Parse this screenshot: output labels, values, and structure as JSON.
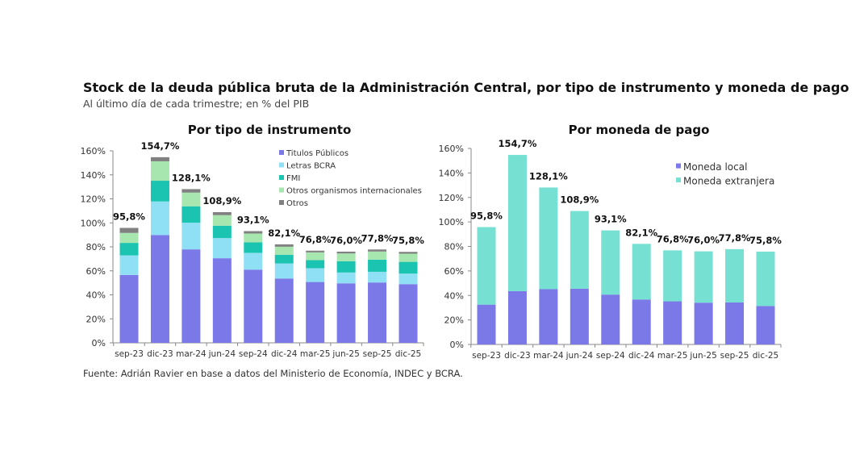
{
  "title": "Stock de la deuda pública bruta de la Administración Central, por tipo de instrumento y moneda de pago",
  "subtitle": "Al último día de cada trimestre; en % del PIB",
  "source": "Fuente: Adrián Ravier en base a datos del Ministerio de Economía, INDEC y BCRA.",
  "chart_data": [
    {
      "type": "bar",
      "stacked": true,
      "title": "Por tipo de instrumento",
      "categories": [
        "sep-23",
        "dic-23",
        "mar-24",
        "jun-24",
        "sep-24",
        "dic-24",
        "mar-25",
        "jun-25",
        "sep-25",
        "dic-25"
      ],
      "totals": [
        "95,8%",
        "154,7%",
        "128,1%",
        "108,9%",
        "93,1%",
        "82,1%",
        "76,8%",
        "76,0%",
        "77,8%",
        "75,8%"
      ],
      "yticks": [
        "0%",
        "20%",
        "40%",
        "60%",
        "80%",
        "100%",
        "120%",
        "140%",
        "160%"
      ],
      "ylim": [
        0,
        160
      ],
      "grid": false,
      "legend": "top-right",
      "series": [
        {
          "name": "Titulos Públicos",
          "color": "#7b78e8",
          "values": [
            56.6,
            89.8,
            77.9,
            70.5,
            61.0,
            53.6,
            50.7,
            49.6,
            50.3,
            48.9
          ]
        },
        {
          "name": "Letras BCRA",
          "color": "#8fe0f5",
          "values": [
            16.3,
            28.0,
            22.2,
            16.8,
            14.0,
            12.6,
            11.5,
            9.0,
            8.9,
            8.8
          ]
        },
        {
          "name": "FMI",
          "color": "#1bc4b0",
          "values": [
            10.4,
            17.3,
            13.7,
            10.3,
            8.7,
            7.2,
            6.7,
            9.4,
            10.1,
            9.8
          ]
        },
        {
          "name": "Otros organismos internacionales",
          "color": "#a8e6b0",
          "values": [
            8.3,
            16.2,
            11.4,
            8.8,
            7.4,
            6.7,
            6.5,
            6.5,
            6.8,
            6.8
          ]
        },
        {
          "name": "Otros",
          "color": "#808080",
          "values": [
            4.2,
            3.4,
            2.9,
            2.5,
            2.0,
            2.0,
            1.4,
            1.5,
            1.7,
            1.5
          ]
        }
      ]
    },
    {
      "type": "bar",
      "stacked": true,
      "title": "Por moneda de pago",
      "categories": [
        "sep-23",
        "dic-23",
        "mar-24",
        "jun-24",
        "sep-24",
        "dic-24",
        "mar-25",
        "jun-25",
        "sep-25",
        "dic-25"
      ],
      "totals": [
        "95,8%",
        "154,7%",
        "128,1%",
        "108,9%",
        "93,1%",
        "82,1%",
        "76,8%",
        "76,0%",
        "77,8%",
        "75,8%"
      ],
      "yticks": [
        "0%",
        "20%",
        "40%",
        "60%",
        "80%",
        "100%",
        "120%",
        "140%",
        "160%"
      ],
      "ylim": [
        0,
        160
      ],
      "grid": false,
      "legend": "top-right",
      "series": [
        {
          "name": "Moneda local",
          "color": "#7b78e8",
          "values": [
            32.5,
            43.5,
            45.1,
            45.5,
            40.7,
            36.7,
            35.2,
            34.1,
            34.3,
            31.4
          ]
        },
        {
          "name": "Moneda extranjera",
          "color": "#76e0d2",
          "values": [
            63.3,
            111.2,
            83.0,
            63.4,
            52.4,
            45.4,
            41.6,
            41.9,
            43.5,
            44.4
          ]
        }
      ]
    }
  ]
}
